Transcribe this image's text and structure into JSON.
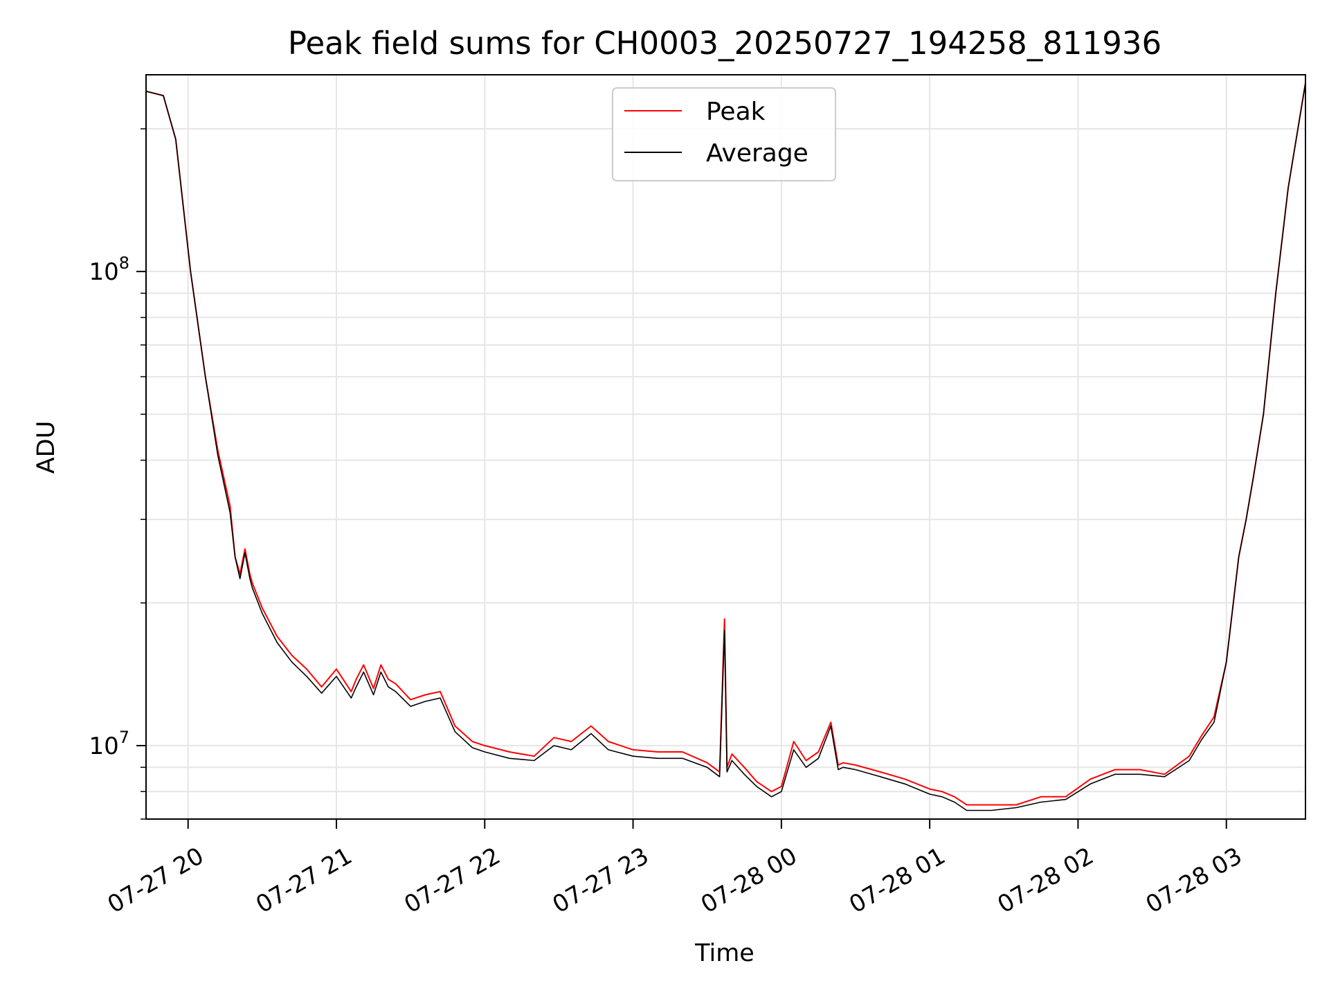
{
  "chart_data": {
    "type": "line",
    "title": "Peak field sums for CH0003_20250727_194258_811936",
    "xlabel": "Time",
    "ylabel": "ADU",
    "y_scale": "log",
    "ylim": [
      7000000,
      260000000
    ],
    "xlim": [
      "2025-07-27 19:43",
      "2025-07-28 03:32"
    ],
    "x_ticks": [
      {
        "value": "2025-07-27 20:00",
        "label": "07-27 20"
      },
      {
        "value": "2025-07-27 21:00",
        "label": "07-27 21"
      },
      {
        "value": "2025-07-27 22:00",
        "label": "07-27 22"
      },
      {
        "value": "2025-07-27 23:00",
        "label": "07-27 23"
      },
      {
        "value": "2025-07-28 00:00",
        "label": "07-28 00"
      },
      {
        "value": "2025-07-28 01:00",
        "label": "07-28 01"
      },
      {
        "value": "2025-07-28 02:00",
        "label": "07-28 02"
      },
      {
        "value": "2025-07-28 03:00",
        "label": "07-28 03"
      }
    ],
    "y_ticks": [
      {
        "value": 10000000,
        "base": "10",
        "exp": "7"
      },
      {
        "value": 100000000,
        "base": "10",
        "exp": "8"
      }
    ],
    "grid": true,
    "legend_position": "top-center",
    "x": [
      "2025-07-27 19:43",
      "2025-07-27 19:50",
      "2025-07-27 19:55",
      "2025-07-27 20:01",
      "2025-07-27 20:07",
      "2025-07-27 20:12",
      "2025-07-27 20:17",
      "2025-07-27 20:19",
      "2025-07-27 20:21",
      "2025-07-27 20:23",
      "2025-07-27 20:25",
      "2025-07-27 20:26",
      "2025-07-27 20:30",
      "2025-07-27 20:36",
      "2025-07-27 20:42",
      "2025-07-27 20:48",
      "2025-07-27 20:54",
      "2025-07-27 21:00",
      "2025-07-27 21:06",
      "2025-07-27 21:08",
      "2025-07-27 21:11",
      "2025-07-27 21:15",
      "2025-07-27 21:18",
      "2025-07-27 21:21",
      "2025-07-27 21:24",
      "2025-07-27 21:30",
      "2025-07-27 21:36",
      "2025-07-27 21:42",
      "2025-07-27 21:48",
      "2025-07-27 21:55",
      "2025-07-27 22:00",
      "2025-07-27 22:10",
      "2025-07-27 22:20",
      "2025-07-27 22:28",
      "2025-07-27 22:35",
      "2025-07-27 22:43",
      "2025-07-27 22:50",
      "2025-07-27 23:00",
      "2025-07-27 23:10",
      "2025-07-27 23:20",
      "2025-07-27 23:30",
      "2025-07-27 23:35",
      "2025-07-27 23:37",
      "2025-07-27 23:38",
      "2025-07-27 23:40",
      "2025-07-27 23:45",
      "2025-07-27 23:50",
      "2025-07-27 23:56",
      "2025-07-28 00:00",
      "2025-07-28 00:05",
      "2025-07-28 00:10",
      "2025-07-28 00:15",
      "2025-07-28 00:20",
      "2025-07-28 00:23",
      "2025-07-28 00:25",
      "2025-07-28 00:30",
      "2025-07-28 00:40",
      "2025-07-28 00:50",
      "2025-07-28 01:00",
      "2025-07-28 01:05",
      "2025-07-28 01:10",
      "2025-07-28 01:15",
      "2025-07-28 01:25",
      "2025-07-28 01:35",
      "2025-07-28 01:45",
      "2025-07-28 01:55",
      "2025-07-28 02:05",
      "2025-07-28 02:15",
      "2025-07-28 02:25",
      "2025-07-28 02:35",
      "2025-07-28 02:45",
      "2025-07-28 02:50",
      "2025-07-28 02:55",
      "2025-07-28 03:00",
      "2025-07-28 03:05",
      "2025-07-28 03:08",
      "2025-07-28 03:11",
      "2025-07-28 03:15",
      "2025-07-28 03:20",
      "2025-07-28 03:25",
      "2025-07-28 03:32"
    ],
    "series": [
      {
        "name": "Peak",
        "color": "#ff0000",
        "values": [
          240000000,
          235000000,
          190000000,
          100000000,
          60000000,
          42000000,
          32000000,
          25000000,
          23000000,
          26000000,
          23000000,
          22000000,
          19500000,
          17000000,
          15500000,
          14500000,
          13300000,
          14500000,
          13000000,
          13800000,
          14800000,
          13200000,
          14800000,
          13800000,
          13500000,
          12500000,
          12800000,
          13000000,
          11000000,
          10200000,
          10000000,
          9700000,
          9500000,
          10400000,
          10200000,
          11000000,
          10200000,
          9800000,
          9700000,
          9700000,
          9200000,
          8800000,
          18500000,
          9000000,
          9600000,
          9000000,
          8400000,
          8000000,
          8200000,
          10200000,
          9300000,
          9700000,
          11200000,
          9100000,
          9200000,
          9100000,
          8800000,
          8500000,
          8100000,
          8000000,
          7800000,
          7500000,
          7500000,
          7500000,
          7800000,
          7800000,
          8500000,
          8900000,
          8900000,
          8700000,
          9500000,
          10500000,
          11500000,
          15000000,
          25000000,
          30000000,
          37000000,
          50000000,
          90000000,
          150000000,
          250000000
        ]
      },
      {
        "name": "Average",
        "color": "#000000",
        "values": [
          240000000,
          235000000,
          190000000,
          100000000,
          60000000,
          41000000,
          31000000,
          25000000,
          22500000,
          25500000,
          22500000,
          21500000,
          19000000,
          16500000,
          15000000,
          14000000,
          12900000,
          14000000,
          12600000,
          13300000,
          14300000,
          12800000,
          14300000,
          13300000,
          13000000,
          12100000,
          12400000,
          12600000,
          10700000,
          9900000,
          9700000,
          9400000,
          9300000,
          10000000,
          9800000,
          10600000,
          9800000,
          9500000,
          9400000,
          9400000,
          9000000,
          8600000,
          17500000,
          8800000,
          9300000,
          8700000,
          8200000,
          7800000,
          8000000,
          9800000,
          9000000,
          9400000,
          11000000,
          8900000,
          9000000,
          8900000,
          8600000,
          8300000,
          7900000,
          7800000,
          7600000,
          7300000,
          7300000,
          7400000,
          7600000,
          7700000,
          8300000,
          8700000,
          8700000,
          8600000,
          9300000,
          10300000,
          11200000,
          15000000,
          25000000,
          30000000,
          37000000,
          50000000,
          90000000,
          150000000,
          250000000
        ]
      }
    ]
  }
}
